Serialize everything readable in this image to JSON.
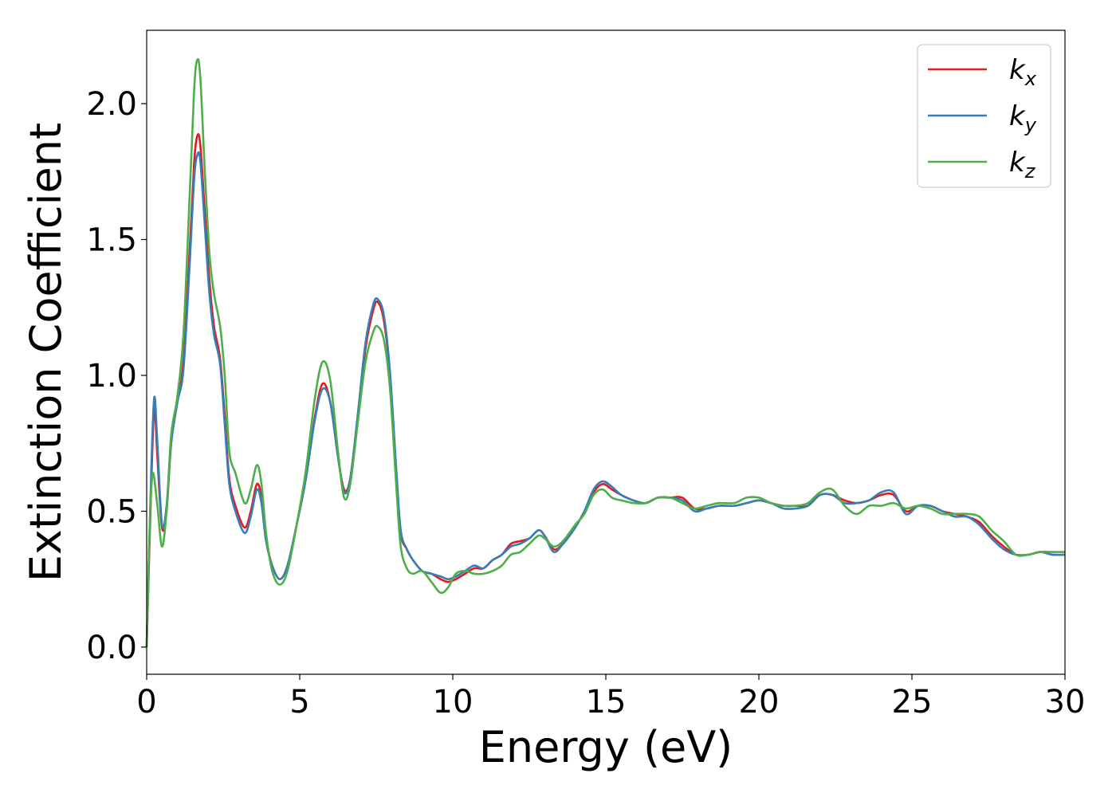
{
  "chart_data": {
    "type": "line",
    "xlabel": "Energy (eV)",
    "ylabel": "Extinction Coefficient",
    "xlim": [
      0,
      30
    ],
    "ylim": [
      -0.1,
      2.27
    ],
    "grid": false,
    "legend_position": "top-right",
    "x_ticks": [
      0,
      5,
      10,
      15,
      20,
      25,
      30
    ],
    "x_tick_labels": [
      "0",
      "5",
      "10",
      "15",
      "20",
      "25",
      "30"
    ],
    "y_ticks": [
      0.0,
      0.5,
      1.0,
      1.5,
      2.0
    ],
    "y_tick_labels": [
      "0.0",
      "0.5",
      "1.0",
      "1.5",
      "2.0"
    ],
    "series": [
      {
        "name": "k_x",
        "label_main": "k",
        "label_sub": "x",
        "color": "#e41a1c",
        "points": [
          [
            0,
            0.0
          ],
          [
            0.15,
            0.6
          ],
          [
            0.25,
            0.88
          ],
          [
            0.35,
            0.7
          ],
          [
            0.5,
            0.44
          ],
          [
            0.65,
            0.5
          ],
          [
            0.8,
            0.75
          ],
          [
            1.0,
            0.9
          ],
          [
            1.2,
            1.05
          ],
          [
            1.4,
            1.45
          ],
          [
            1.55,
            1.78
          ],
          [
            1.65,
            1.88
          ],
          [
            1.75,
            1.85
          ],
          [
            1.9,
            1.6
          ],
          [
            2.05,
            1.35
          ],
          [
            2.2,
            1.18
          ],
          [
            2.4,
            1.06
          ],
          [
            2.55,
            0.85
          ],
          [
            2.7,
            0.62
          ],
          [
            2.9,
            0.52
          ],
          [
            3.2,
            0.44
          ],
          [
            3.4,
            0.5
          ],
          [
            3.6,
            0.6
          ],
          [
            3.75,
            0.55
          ],
          [
            3.9,
            0.4
          ],
          [
            4.1,
            0.3
          ],
          [
            4.35,
            0.25
          ],
          [
            4.6,
            0.3
          ],
          [
            4.9,
            0.45
          ],
          [
            5.2,
            0.62
          ],
          [
            5.5,
            0.85
          ],
          [
            5.75,
            0.97
          ],
          [
            6.0,
            0.9
          ],
          [
            6.25,
            0.7
          ],
          [
            6.45,
            0.58
          ],
          [
            6.65,
            0.62
          ],
          [
            6.9,
            0.85
          ],
          [
            7.15,
            1.1
          ],
          [
            7.4,
            1.24
          ],
          [
            7.55,
            1.27
          ],
          [
            7.75,
            1.2
          ],
          [
            7.95,
            1.0
          ],
          [
            8.15,
            0.65
          ],
          [
            8.3,
            0.42
          ],
          [
            8.5,
            0.36
          ],
          [
            8.7,
            0.32
          ],
          [
            9.0,
            0.28
          ],
          [
            9.3,
            0.27
          ],
          [
            9.6,
            0.25
          ],
          [
            9.85,
            0.24
          ],
          [
            10.1,
            0.25
          ],
          [
            10.4,
            0.27
          ],
          [
            10.7,
            0.29
          ],
          [
            11.0,
            0.29
          ],
          [
            11.3,
            0.32
          ],
          [
            11.6,
            0.34
          ],
          [
            11.9,
            0.38
          ],
          [
            12.2,
            0.39
          ],
          [
            12.5,
            0.4
          ],
          [
            12.8,
            0.43
          ],
          [
            13.0,
            0.41
          ],
          [
            13.3,
            0.36
          ],
          [
            13.6,
            0.38
          ],
          [
            14.0,
            0.44
          ],
          [
            14.3,
            0.5
          ],
          [
            14.6,
            0.57
          ],
          [
            14.9,
            0.6
          ],
          [
            15.2,
            0.58
          ],
          [
            15.5,
            0.56
          ],
          [
            15.9,
            0.54
          ],
          [
            16.3,
            0.53
          ],
          [
            16.7,
            0.55
          ],
          [
            17.1,
            0.55
          ],
          [
            17.5,
            0.55
          ],
          [
            17.9,
            0.51
          ],
          [
            18.3,
            0.51
          ],
          [
            18.7,
            0.52
          ],
          [
            19.2,
            0.52
          ],
          [
            19.6,
            0.53
          ],
          [
            20.0,
            0.54
          ],
          [
            20.4,
            0.53
          ],
          [
            20.8,
            0.52
          ],
          [
            21.2,
            0.52
          ],
          [
            21.6,
            0.52
          ],
          [
            22.0,
            0.56
          ],
          [
            22.4,
            0.56
          ],
          [
            22.8,
            0.54
          ],
          [
            23.2,
            0.53
          ],
          [
            23.6,
            0.54
          ],
          [
            24.0,
            0.56
          ],
          [
            24.4,
            0.56
          ],
          [
            24.8,
            0.5
          ],
          [
            25.2,
            0.52
          ],
          [
            25.6,
            0.52
          ],
          [
            26.0,
            0.5
          ],
          [
            26.4,
            0.49
          ],
          [
            26.8,
            0.48
          ],
          [
            27.2,
            0.46
          ],
          [
            27.6,
            0.41
          ],
          [
            28.0,
            0.37
          ],
          [
            28.4,
            0.34
          ],
          [
            28.8,
            0.34
          ],
          [
            29.2,
            0.35
          ],
          [
            29.6,
            0.34
          ],
          [
            30.0,
            0.34
          ]
        ]
      },
      {
        "name": "k_y",
        "label_main": "k",
        "label_sub": "y",
        "color": "#377eb8",
        "points": [
          [
            0,
            0.0
          ],
          [
            0.15,
            0.65
          ],
          [
            0.25,
            0.92
          ],
          [
            0.35,
            0.75
          ],
          [
            0.5,
            0.45
          ],
          [
            0.65,
            0.52
          ],
          [
            0.8,
            0.75
          ],
          [
            1.0,
            0.9
          ],
          [
            1.2,
            1.02
          ],
          [
            1.4,
            1.4
          ],
          [
            1.55,
            1.72
          ],
          [
            1.65,
            1.81
          ],
          [
            1.75,
            1.79
          ],
          [
            1.9,
            1.55
          ],
          [
            2.05,
            1.3
          ],
          [
            2.2,
            1.15
          ],
          [
            2.4,
            1.04
          ],
          [
            2.55,
            0.82
          ],
          [
            2.7,
            0.6
          ],
          [
            2.9,
            0.5
          ],
          [
            3.2,
            0.42
          ],
          [
            3.4,
            0.48
          ],
          [
            3.6,
            0.58
          ],
          [
            3.75,
            0.53
          ],
          [
            3.9,
            0.39
          ],
          [
            4.1,
            0.3
          ],
          [
            4.35,
            0.25
          ],
          [
            4.6,
            0.3
          ],
          [
            4.9,
            0.45
          ],
          [
            5.2,
            0.62
          ],
          [
            5.5,
            0.84
          ],
          [
            5.75,
            0.95
          ],
          [
            6.0,
            0.9
          ],
          [
            6.25,
            0.7
          ],
          [
            6.45,
            0.57
          ],
          [
            6.65,
            0.62
          ],
          [
            6.9,
            0.86
          ],
          [
            7.15,
            1.12
          ],
          [
            7.4,
            1.26
          ],
          [
            7.55,
            1.28
          ],
          [
            7.75,
            1.22
          ],
          [
            7.95,
            1.01
          ],
          [
            8.15,
            0.66
          ],
          [
            8.3,
            0.43
          ],
          [
            8.5,
            0.36
          ],
          [
            8.7,
            0.32
          ],
          [
            9.0,
            0.28
          ],
          [
            9.3,
            0.27
          ],
          [
            9.6,
            0.26
          ],
          [
            9.85,
            0.25
          ],
          [
            10.1,
            0.26
          ],
          [
            10.4,
            0.28
          ],
          [
            10.7,
            0.3
          ],
          [
            11.0,
            0.29
          ],
          [
            11.3,
            0.32
          ],
          [
            11.6,
            0.34
          ],
          [
            11.9,
            0.37
          ],
          [
            12.2,
            0.38
          ],
          [
            12.5,
            0.4
          ],
          [
            12.8,
            0.43
          ],
          [
            13.0,
            0.41
          ],
          [
            13.3,
            0.35
          ],
          [
            13.6,
            0.38
          ],
          [
            14.0,
            0.44
          ],
          [
            14.3,
            0.5
          ],
          [
            14.6,
            0.58
          ],
          [
            14.9,
            0.61
          ],
          [
            15.2,
            0.59
          ],
          [
            15.5,
            0.56
          ],
          [
            15.9,
            0.54
          ],
          [
            16.3,
            0.53
          ],
          [
            16.7,
            0.55
          ],
          [
            17.1,
            0.55
          ],
          [
            17.5,
            0.54
          ],
          [
            17.9,
            0.5
          ],
          [
            18.3,
            0.51
          ],
          [
            18.7,
            0.52
          ],
          [
            19.2,
            0.52
          ],
          [
            19.6,
            0.53
          ],
          [
            20.0,
            0.54
          ],
          [
            20.4,
            0.53
          ],
          [
            20.8,
            0.51
          ],
          [
            21.2,
            0.51
          ],
          [
            21.6,
            0.52
          ],
          [
            22.0,
            0.56
          ],
          [
            22.4,
            0.56
          ],
          [
            22.8,
            0.53
          ],
          [
            23.2,
            0.53
          ],
          [
            23.6,
            0.54
          ],
          [
            24.0,
            0.57
          ],
          [
            24.4,
            0.57
          ],
          [
            24.8,
            0.49
          ],
          [
            25.2,
            0.52
          ],
          [
            25.6,
            0.52
          ],
          [
            26.0,
            0.5
          ],
          [
            26.4,
            0.48
          ],
          [
            26.8,
            0.48
          ],
          [
            27.2,
            0.45
          ],
          [
            27.6,
            0.4
          ],
          [
            28.0,
            0.36
          ],
          [
            28.4,
            0.34
          ],
          [
            28.8,
            0.34
          ],
          [
            29.2,
            0.35
          ],
          [
            29.6,
            0.34
          ],
          [
            30.0,
            0.34
          ]
        ]
      },
      {
        "name": "k_z",
        "label_main": "k",
        "label_sub": "z",
        "color": "#4daf4a",
        "points": [
          [
            0,
            0.0
          ],
          [
            0.1,
            0.45
          ],
          [
            0.2,
            0.64
          ],
          [
            0.35,
            0.52
          ],
          [
            0.5,
            0.37
          ],
          [
            0.65,
            0.5
          ],
          [
            0.8,
            0.78
          ],
          [
            1.0,
            0.92
          ],
          [
            1.2,
            1.15
          ],
          [
            1.4,
            1.65
          ],
          [
            1.55,
            2.05
          ],
          [
            1.65,
            2.16
          ],
          [
            1.75,
            2.1
          ],
          [
            1.9,
            1.75
          ],
          [
            2.05,
            1.45
          ],
          [
            2.2,
            1.3
          ],
          [
            2.4,
            1.18
          ],
          [
            2.55,
            1.0
          ],
          [
            2.7,
            0.72
          ],
          [
            2.9,
            0.64
          ],
          [
            3.2,
            0.53
          ],
          [
            3.4,
            0.58
          ],
          [
            3.6,
            0.67
          ],
          [
            3.75,
            0.6
          ],
          [
            3.9,
            0.42
          ],
          [
            4.1,
            0.28
          ],
          [
            4.35,
            0.23
          ],
          [
            4.6,
            0.28
          ],
          [
            4.9,
            0.45
          ],
          [
            5.2,
            0.65
          ],
          [
            5.5,
            0.92
          ],
          [
            5.75,
            1.05
          ],
          [
            6.0,
            0.98
          ],
          [
            6.25,
            0.72
          ],
          [
            6.45,
            0.55
          ],
          [
            6.65,
            0.6
          ],
          [
            6.9,
            0.83
          ],
          [
            7.15,
            1.05
          ],
          [
            7.4,
            1.16
          ],
          [
            7.55,
            1.18
          ],
          [
            7.75,
            1.13
          ],
          [
            7.95,
            0.95
          ],
          [
            8.15,
            0.6
          ],
          [
            8.3,
            0.37
          ],
          [
            8.5,
            0.29
          ],
          [
            8.7,
            0.27
          ],
          [
            9.0,
            0.28
          ],
          [
            9.3,
            0.24
          ],
          [
            9.6,
            0.2
          ],
          [
            9.85,
            0.22
          ],
          [
            10.1,
            0.27
          ],
          [
            10.4,
            0.28
          ],
          [
            10.7,
            0.27
          ],
          [
            11.0,
            0.27
          ],
          [
            11.3,
            0.28
          ],
          [
            11.6,
            0.3
          ],
          [
            11.9,
            0.34
          ],
          [
            12.2,
            0.35
          ],
          [
            12.5,
            0.38
          ],
          [
            12.8,
            0.41
          ],
          [
            13.0,
            0.4
          ],
          [
            13.3,
            0.37
          ],
          [
            13.6,
            0.39
          ],
          [
            14.0,
            0.45
          ],
          [
            14.3,
            0.49
          ],
          [
            14.6,
            0.56
          ],
          [
            14.9,
            0.58
          ],
          [
            15.2,
            0.55
          ],
          [
            15.5,
            0.54
          ],
          [
            15.9,
            0.53
          ],
          [
            16.3,
            0.53
          ],
          [
            16.7,
            0.55
          ],
          [
            17.1,
            0.55
          ],
          [
            17.5,
            0.53
          ],
          [
            17.9,
            0.51
          ],
          [
            18.3,
            0.52
          ],
          [
            18.7,
            0.53
          ],
          [
            19.2,
            0.53
          ],
          [
            19.6,
            0.55
          ],
          [
            20.0,
            0.55
          ],
          [
            20.4,
            0.53
          ],
          [
            20.8,
            0.52
          ],
          [
            21.2,
            0.52
          ],
          [
            21.6,
            0.53
          ],
          [
            22.0,
            0.57
          ],
          [
            22.4,
            0.58
          ],
          [
            22.8,
            0.52
          ],
          [
            23.2,
            0.49
          ],
          [
            23.6,
            0.52
          ],
          [
            24.0,
            0.52
          ],
          [
            24.4,
            0.53
          ],
          [
            24.8,
            0.51
          ],
          [
            25.2,
            0.52
          ],
          [
            25.6,
            0.51
          ],
          [
            26.0,
            0.49
          ],
          [
            26.4,
            0.49
          ],
          [
            26.8,
            0.49
          ],
          [
            27.2,
            0.48
          ],
          [
            27.6,
            0.43
          ],
          [
            28.0,
            0.39
          ],
          [
            28.4,
            0.34
          ],
          [
            28.8,
            0.34
          ],
          [
            29.2,
            0.35
          ],
          [
            29.6,
            0.35
          ],
          [
            30.0,
            0.35
          ]
        ]
      }
    ]
  }
}
